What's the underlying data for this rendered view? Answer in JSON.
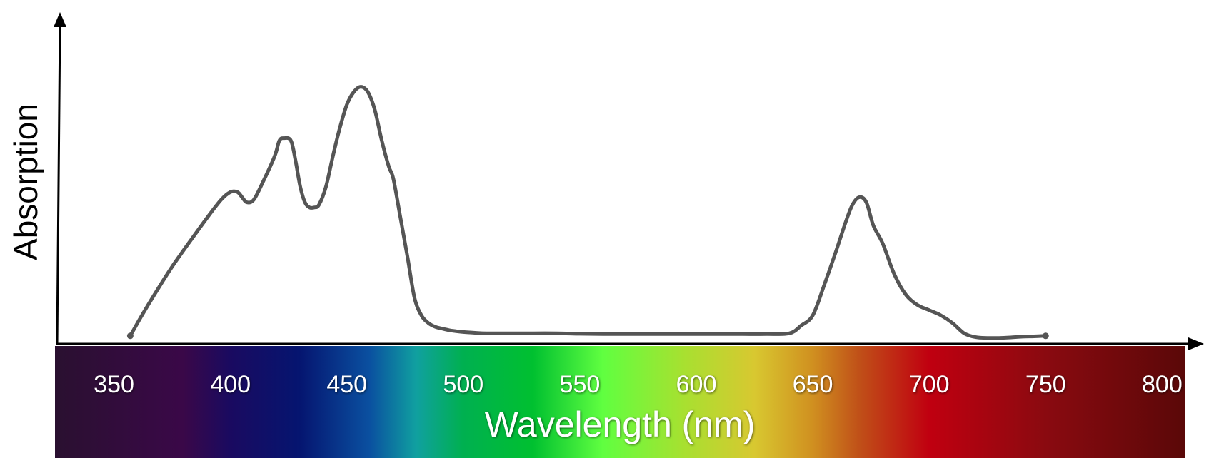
{
  "chart_data": {
    "type": "line",
    "xlabel": "Wavelength (nm)",
    "ylabel": "Absorption",
    "xlim": [
      325,
      810
    ],
    "ylim": [
      0,
      1
    ],
    "x_ticks": [
      350,
      400,
      450,
      500,
      550,
      600,
      650,
      700,
      750,
      800
    ],
    "y_tick_labels": "none",
    "grid": false,
    "legend": "none",
    "spectrum_colors": [
      {
        "wavelength": 325,
        "color": "#2a1030"
      },
      {
        "wavelength": 380,
        "color": "#3a0848"
      },
      {
        "wavelength": 400,
        "color": "#1a0a60"
      },
      {
        "wavelength": 430,
        "color": "#051570"
      },
      {
        "wavelength": 460,
        "color": "#0a50a0"
      },
      {
        "wavelength": 480,
        "color": "#10a0a0"
      },
      {
        "wavelength": 500,
        "color": "#00b050"
      },
      {
        "wavelength": 530,
        "color": "#00c030"
      },
      {
        "wavelength": 560,
        "color": "#60ff40"
      },
      {
        "wavelength": 595,
        "color": "#a8e030"
      },
      {
        "wavelength": 625,
        "color": "#d8c830"
      },
      {
        "wavelength": 650,
        "color": "#d09020"
      },
      {
        "wavelength": 670,
        "color": "#c05018"
      },
      {
        "wavelength": 700,
        "color": "#c00010"
      },
      {
        "wavelength": 750,
        "color": "#8a0a10"
      },
      {
        "wavelength": 810,
        "color": "#5a0808"
      }
    ],
    "line_color": "#555555",
    "series": [
      {
        "x": [
          357,
          362,
          368,
          375,
          382,
          390,
          396,
          400,
          403,
          405,
          407,
          410,
          414,
          419,
          421,
          423,
          426,
          428,
          430,
          432,
          434,
          436,
          438,
          441,
          444,
          447,
          450,
          453,
          456,
          459,
          462,
          465,
          468,
          470,
          473,
          476,
          479,
          482,
          485,
          488,
          491,
          494,
          497,
          500,
          505,
          510,
          520,
          530,
          540,
          550,
          560,
          570,
          580,
          590,
          600,
          610,
          620,
          630,
          640,
          645,
          650,
          655,
          660,
          664,
          667,
          670,
          673,
          676,
          680,
          685,
          690,
          695,
          700,
          705,
          710,
          715,
          720,
          725,
          730,
          735,
          740,
          745,
          750
        ],
        "y": [
          0.02,
          0.1,
          0.19,
          0.29,
          0.38,
          0.48,
          0.55,
          0.58,
          0.58,
          0.56,
          0.54,
          0.55,
          0.62,
          0.72,
          0.78,
          0.79,
          0.78,
          0.7,
          0.6,
          0.54,
          0.52,
          0.52,
          0.53,
          0.6,
          0.72,
          0.83,
          0.92,
          0.97,
          0.99,
          0.97,
          0.9,
          0.78,
          0.68,
          0.63,
          0.48,
          0.33,
          0.17,
          0.1,
          0.07,
          0.055,
          0.048,
          0.042,
          0.038,
          0.035,
          0.032,
          0.03,
          0.03,
          0.03,
          0.03,
          0.028,
          0.027,
          0.027,
          0.027,
          0.027,
          0.027,
          0.027,
          0.027,
          0.027,
          0.03,
          0.06,
          0.1,
          0.22,
          0.35,
          0.46,
          0.53,
          0.56,
          0.54,
          0.45,
          0.38,
          0.26,
          0.18,
          0.14,
          0.12,
          0.1,
          0.07,
          0.03,
          0.015,
          0.012,
          0.012,
          0.014,
          0.017,
          0.018,
          0.02
        ]
      }
    ]
  }
}
